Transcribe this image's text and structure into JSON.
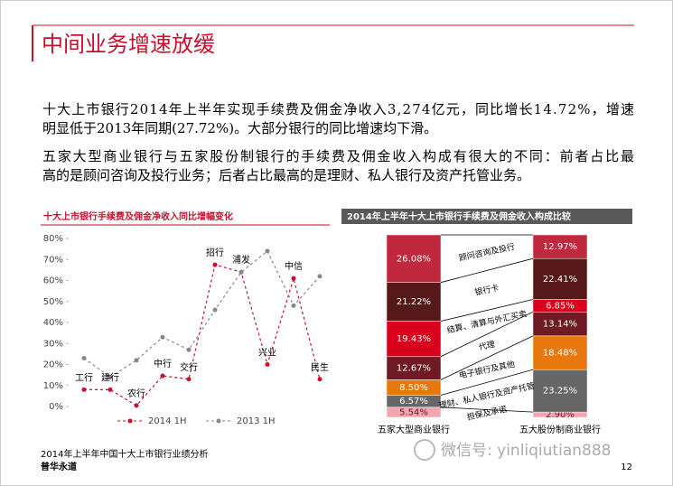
{
  "header": {
    "title": "中间业务增速放缓"
  },
  "paragraphs": [
    [
      "十大上市银行2014年上半年实现手续费及佣金净收入3,274亿元，同比增长14.72%，增速",
      "明显低于2013年同期(27.72%)。大部分银行的同比增速均下滑。"
    ],
    [
      "五家大型商业银行与五家股份制银行的手续费及佣金收入构成有很大的不同：前者占比最",
      "高的是顾问咨询及投行业务；后者占比最高的是理财、私人银行及资产托管业务。"
    ]
  ],
  "chart_data": [
    {
      "type": "line",
      "title": "十大上市银行手续费及佣金净收入同比增幅变化",
      "categories": [
        "工行",
        "建行",
        "农行",
        "中行",
        "交行",
        "招行",
        "浦发",
        "兴业",
        "中信",
        "民生"
      ],
      "series": [
        {
          "name": "2014 1H",
          "color": "#c8102e",
          "values": [
            8,
            8,
            0.5,
            14.6,
            13,
            67.5,
            64,
            20,
            61,
            13
          ]
        },
        {
          "name": "2013 1H",
          "color": "#888888",
          "values": [
            23,
            14,
            22,
            33,
            27,
            46,
            64,
            74,
            48,
            62
          ]
        }
      ],
      "ylim": [
        0,
        80
      ],
      "yticks": [
        {
          "value": 0,
          "label": "0%"
        },
        {
          "value": 10,
          "label": "10%"
        },
        {
          "value": 20,
          "label": "20%"
        },
        {
          "value": 30,
          "label": "30%"
        },
        {
          "value": 40,
          "label": "40%"
        },
        {
          "value": 50,
          "label": "50%"
        },
        {
          "value": 60,
          "label": "60%"
        },
        {
          "value": 70,
          "label": "70%"
        },
        {
          "value": 80,
          "label": "80%"
        }
      ]
    },
    {
      "type": "stacked-bar",
      "title": "2014年上半年十大上市银行手续费及佣金收入构成比较",
      "categories": [
        "五家大型商业银行",
        "五大股份制商业银行"
      ],
      "series": [
        {
          "name": "担保及承诺",
          "color": "#f2a7b0",
          "values": [
            5.54,
            2.9
          ],
          "value_labels": [
            "5.54%",
            "2.90%"
          ]
        },
        {
          "name": "理财、私人银行及资产托管",
          "color": "#666666",
          "values": [
            6.57,
            23.25
          ],
          "value_labels": [
            "6.57%",
            "23.25%"
          ]
        },
        {
          "name": "电子银行及其他",
          "color": "#e8780e",
          "values": [
            8.5,
            18.48
          ],
          "value_labels": [
            "8.50%",
            "18.48%"
          ]
        },
        {
          "name": "代理",
          "color": "#6e1b26",
          "values": [
            12.67,
            13.14
          ],
          "value_labels": [
            "12.67%",
            "13.14%"
          ]
        },
        {
          "name": "结算、清算与外汇买卖",
          "color": "#d9001b",
          "values": [
            19.43,
            6.85
          ],
          "value_labels": [
            "19.43%",
            "6.85%"
          ]
        },
        {
          "name": "银行卡",
          "color": "#561818",
          "values": [
            21.22,
            22.41
          ],
          "value_labels": [
            "21.22%",
            "22.41%"
          ]
        },
        {
          "name": "顾问咨询及投行",
          "color": "#c0283d",
          "values": [
            26.08,
            12.97
          ],
          "value_labels": [
            "26.08%",
            "12.97%"
          ]
        }
      ]
    }
  ],
  "footer": {
    "report": "2014年上半年中国十大上市银行业绩分析",
    "company": "普华永道",
    "page": "12",
    "watermark": "微信号: yinliqiutian888"
  }
}
